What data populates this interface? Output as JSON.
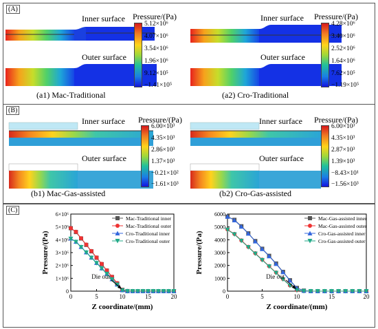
{
  "panels": {
    "A": {
      "label": "(A)",
      "left": {
        "caption": "(a1) Mac-Traditional",
        "inner": "Inner surface",
        "outer": "Outer surface",
        "legend_title": "Pressure/(Pa)",
        "ticks": [
          "5.12×10⁶",
          "4.07×10⁶",
          "3.54×10⁶",
          "1.96×10⁶",
          "9.12×10⁵",
          "−1.41×10⁵"
        ]
      },
      "right": {
        "caption": "(a2) Cro-Traditional",
        "inner": "Inner surface",
        "outer": "Outer surface",
        "legend_title": "Pressure/(Pa)",
        "ticks": [
          "4.28×10⁶",
          "3.40×10⁶",
          "2.52×10⁶",
          "1.64×10⁶",
          "7.62×10⁵",
          "−1.19×10⁵"
        ]
      }
    },
    "B": {
      "label": "(B)",
      "left": {
        "caption": "(b1) Mac-Gas-assisted",
        "inner": "Inner surface",
        "outer": "Outer surface",
        "legend_title": "Pressure/(Pa)",
        "ticks": [
          "6.00×10³",
          "4.35×10³",
          "2.86×10³",
          "1.37×10³",
          "−0.21×10²",
          "−1.61×10³"
        ]
      },
      "right": {
        "caption": "(b2) Cro-Gas-assisted",
        "inner": "Inner surface",
        "outer": "Outer surface",
        "legend_title": "Pressure/(Pa)",
        "ticks": [
          "6.00×10³",
          "4.35×10³",
          "2.87×10³",
          "1.39×10³",
          "−8.43×10¹",
          "−1.56×10³"
        ]
      }
    },
    "C": {
      "label": "(C)"
    }
  },
  "chart_data": [
    {
      "type": "line",
      "xlabel": "Z coordinate/(mm)",
      "ylabel": "Pressure/(Pa)",
      "xlim": [
        0,
        20
      ],
      "ylim": [
        0,
        6000000
      ],
      "xticks": [
        "0",
        "5",
        "10",
        "15",
        "20"
      ],
      "yticks": [
        "0",
        "1×10⁶",
        "2×10⁶",
        "3×10⁶",
        "4×10⁶",
        "5×10⁶",
        "6×10⁶"
      ],
      "annotation": "Die out",
      "annotation_x": 10,
      "legend_position": "top-right",
      "x": [
        0,
        1,
        2,
        3,
        4,
        5,
        6,
        7,
        8,
        9,
        10,
        11,
        12,
        13,
        14,
        15,
        16,
        17,
        18,
        19,
        20
      ],
      "series": [
        {
          "name": "Mac-Traditional inner",
          "color": "#555555",
          "marker": "square",
          "values": [
            4900000,
            4600000,
            4100000,
            3600000,
            3100000,
            2600000,
            2100000,
            1600000,
            1100000,
            600000,
            100000,
            5000,
            0,
            0,
            0,
            0,
            0,
            0,
            0,
            0,
            0
          ]
        },
        {
          "name": "Mac-Traditional outer",
          "color": "#ee3333",
          "marker": "circle",
          "values": [
            4900000,
            4620000,
            4120000,
            3620000,
            3120000,
            2620000,
            2120000,
            1620000,
            1120000,
            620000,
            110000,
            6000,
            0,
            0,
            0,
            0,
            0,
            0,
            0,
            0,
            0
          ]
        },
        {
          "name": "Cro-Traditional inner",
          "color": "#3366dd",
          "marker": "triangle",
          "values": [
            4100000,
            3850000,
            3450000,
            3030000,
            2620000,
            2200000,
            1780000,
            1360000,
            940000,
            520000,
            80000,
            4000,
            0,
            0,
            0,
            0,
            0,
            0,
            0,
            0,
            0
          ]
        },
        {
          "name": "Cro-Traditional outer",
          "color": "#22aa88",
          "marker": "triangle-down",
          "values": [
            4080000,
            3830000,
            3430000,
            3010000,
            2600000,
            2180000,
            1760000,
            1340000,
            920000,
            500000,
            70000,
            3000,
            0,
            0,
            0,
            0,
            0,
            0,
            0,
            0,
            0
          ]
        }
      ]
    },
    {
      "type": "line",
      "xlabel": "Z coordinate/(mm)",
      "ylabel": "Pressure/(Pa)",
      "xlim": [
        0,
        20
      ],
      "ylim": [
        0,
        6000
      ],
      "xticks": [
        "0",
        "5",
        "10",
        "15",
        "20"
      ],
      "yticks": [
        "0",
        "1000",
        "2000",
        "3000",
        "4000",
        "5000",
        "6000"
      ],
      "annotation": "Die out",
      "annotation_x": 10,
      "legend_position": "top-right",
      "x": [
        0,
        1,
        2,
        3,
        4,
        5,
        6,
        7,
        8,
        9,
        10,
        11,
        12,
        13,
        14,
        15,
        16,
        17,
        18,
        19,
        20
      ],
      "series": [
        {
          "name": "Mac-Gas-assisted inner",
          "color": "#555555",
          "marker": "square",
          "values": [
            5800,
            5550,
            5050,
            4500,
            3900,
            3300,
            2750,
            2150,
            1500,
            850,
            250,
            40,
            0,
            0,
            0,
            0,
            0,
            0,
            0,
            0,
            0
          ]
        },
        {
          "name": "Mac-Gas-assisted outer",
          "color": "#ee3333",
          "marker": "circle",
          "values": [
            4800,
            4450,
            3950,
            3450,
            2950,
            2450,
            1950,
            1450,
            950,
            450,
            80,
            10,
            0,
            0,
            0,
            0,
            0,
            0,
            0,
            0,
            0
          ]
        },
        {
          "name": "Cro-Gas-assisted inner",
          "color": "#3366dd",
          "marker": "triangle",
          "values": [
            5800,
            5520,
            5020,
            4480,
            3880,
            3280,
            2720,
            2120,
            1480,
            830,
            230,
            30,
            0,
            0,
            0,
            0,
            0,
            0,
            0,
            0,
            0
          ]
        },
        {
          "name": "Cro-Gas-assisted outer",
          "color": "#22aa88",
          "marker": "triangle-down",
          "values": [
            4780,
            4420,
            3920,
            3420,
            2920,
            2420,
            1920,
            1420,
            920,
            430,
            70,
            8,
            0,
            0,
            0,
            0,
            0,
            0,
            0,
            0,
            0
          ]
        }
      ]
    }
  ]
}
